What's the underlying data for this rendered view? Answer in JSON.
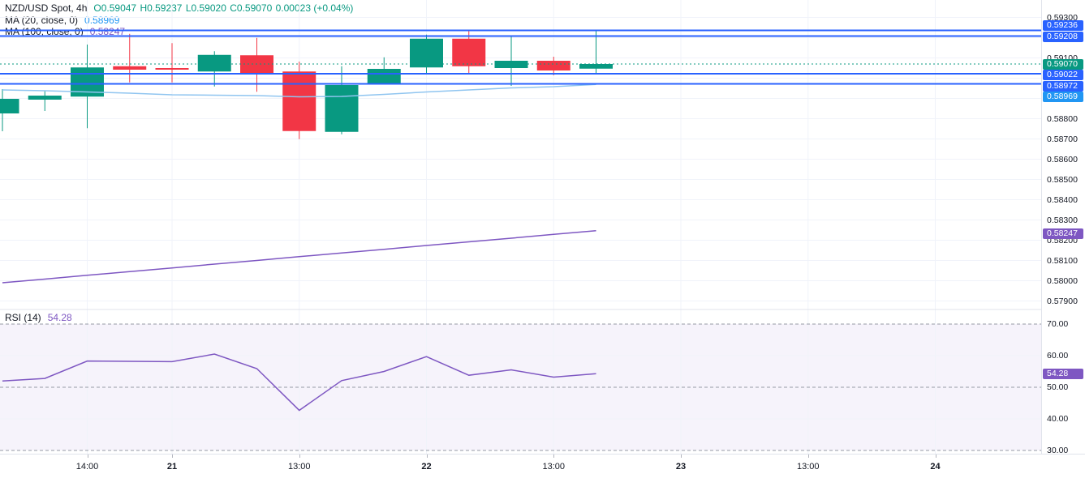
{
  "header": {
    "symbol_title": "NZD/USD Spot, 4h",
    "ohlc": {
      "open": "O0.59047",
      "high": "H0.59237",
      "low": "L0.59020",
      "close": "C0.59070",
      "change": "0.00023 (+0.04%)"
    },
    "ma20": {
      "label": "MA (20, close, 0)",
      "value": "0.58969"
    },
    "ma100": {
      "label": "MA (100, close, 0)",
      "value": "0.58247"
    }
  },
  "rsi_legend": {
    "label": "RSI (14)",
    "value": "54.28"
  },
  "price_axis": {
    "ticks": [
      "0.59300",
      "0.59100",
      "0.58800",
      "0.58700",
      "0.58600",
      "0.58500",
      "0.58400",
      "0.58300",
      "0.58200",
      "0.58100",
      "0.58000",
      "0.57900"
    ],
    "badges": [
      {
        "text": "0.59236",
        "color": "#2962FF",
        "kind": "drawn-line"
      },
      {
        "text": "0.59208",
        "color": "#2962FF",
        "kind": "drawn-line"
      },
      {
        "text": "0.59070",
        "color": "#089981",
        "kind": "last-price"
      },
      {
        "text": "0.59022",
        "color": "#2962FF",
        "kind": "drawn-line"
      },
      {
        "text": "0.58972",
        "color": "#2962FF",
        "kind": "drawn-line"
      },
      {
        "text": "0.58969",
        "color": "#2196F3",
        "kind": "ma20-value"
      },
      {
        "text": "0.58247",
        "color": "#7E57C2",
        "kind": "ma100-value"
      }
    ]
  },
  "rsi_axis": {
    "ticks": [
      "70.00",
      "60.00",
      "50.00",
      "40.00",
      "30.00"
    ],
    "badge": {
      "text": "54.28",
      "color": "#7E57C2"
    }
  },
  "time_axis": {
    "labels": [
      {
        "text": "14:00",
        "index": 2,
        "bold": false
      },
      {
        "text": "21",
        "index": 4,
        "bold": true
      },
      {
        "text": "13:00",
        "index": 7,
        "bold": false
      },
      {
        "text": "22",
        "index": 10,
        "bold": true
      },
      {
        "text": "13:00",
        "index": 13,
        "bold": false
      },
      {
        "text": "23",
        "index": 16,
        "bold": true
      },
      {
        "text": "13:00",
        "index": 19,
        "bold": false
      },
      {
        "text": "24",
        "index": 22,
        "bold": true
      }
    ]
  },
  "colors": {
    "up": "#089981",
    "down": "#F23645",
    "drawn_line": "#2962FF",
    "ma20_line": "#90C5F0",
    "ma20_label": "#2196F3",
    "ma100": "#7E57C2",
    "rsi": "#7E57C2",
    "rsi_band": "#7E57C2",
    "grid": "#F0F3FA",
    "axis_text": "#131722",
    "dashed_level": "#959BA5",
    "separator": "#E0E3EB",
    "tick": "#B2B5BE",
    "last_price": "#089981"
  },
  "chart_data": [
    {
      "type": "candlestick",
      "title": "NZD/USD Spot, 4h",
      "last_bar": {
        "open": 0.59047,
        "high": 0.59237,
        "low": 0.5902,
        "close": 0.5907,
        "change": 0.00023,
        "change_pct": "+0.04%"
      },
      "candles": [
        {
          "o": 0.58826,
          "h": 0.58946,
          "l": 0.58738,
          "c": 0.58898
        },
        {
          "o": 0.58894,
          "h": 0.58938,
          "l": 0.58838,
          "c": 0.58914
        },
        {
          "o": 0.58909,
          "h": 0.59166,
          "l": 0.58753,
          "c": 0.59053
        },
        {
          "o": 0.59059,
          "h": 0.59219,
          "l": 0.58979,
          "c": 0.59042
        },
        {
          "o": 0.5905,
          "h": 0.59173,
          "l": 0.58979,
          "c": 0.59042
        },
        {
          "o": 0.59033,
          "h": 0.59133,
          "l": 0.58959,
          "c": 0.59115
        },
        {
          "o": 0.59113,
          "h": 0.59199,
          "l": 0.58933,
          "c": 0.59026
        },
        {
          "o": 0.59033,
          "h": 0.59082,
          "l": 0.58699,
          "c": 0.58739
        },
        {
          "o": 0.58735,
          "h": 0.59059,
          "l": 0.58723,
          "c": 0.58966
        },
        {
          "o": 0.58969,
          "h": 0.59103,
          "l": 0.58969,
          "c": 0.59046
        },
        {
          "o": 0.59053,
          "h": 0.59215,
          "l": 0.59026,
          "c": 0.59195
        },
        {
          "o": 0.59195,
          "h": 0.59239,
          "l": 0.59023,
          "c": 0.59059
        },
        {
          "o": 0.5905,
          "h": 0.59206,
          "l": 0.58962,
          "c": 0.59086
        },
        {
          "o": 0.59086,
          "h": 0.59106,
          "l": 0.59014,
          "c": 0.59038
        },
        {
          "o": 0.59047,
          "h": 0.59237,
          "l": 0.5902,
          "c": 0.5907
        }
      ],
      "ma20": [
        0.58942,
        0.58938,
        0.58932,
        0.58926,
        0.58918,
        0.58916,
        0.58914,
        0.58908,
        0.5891,
        0.5892,
        0.58932,
        0.58942,
        0.58952,
        0.58958,
        0.58969
      ],
      "ma100": [
        0.5799,
        0.58008,
        0.58027,
        0.58045,
        0.58063,
        0.58082,
        0.581,
        0.58119,
        0.58137,
        0.58155,
        0.58174,
        0.58192,
        0.5821,
        0.58229,
        0.58247
      ],
      "drawn_horizontal_lines": [
        0.59236,
        0.59208,
        0.59022,
        0.58972
      ],
      "last_price": 0.5907,
      "ylabel": "price",
      "y_gridline_step": 0.001,
      "ylim": [
        0.5786,
        0.59386
      ],
      "grid": true
    },
    {
      "type": "line",
      "title": "RSI (14)",
      "values": [
        52.0,
        52.8,
        58.3,
        58.2,
        58.1,
        60.5,
        55.9,
        42.7,
        52.1,
        55.0,
        59.7,
        53.8,
        55.5,
        53.2,
        54.28
      ],
      "last_value": 54.28,
      "band": [
        30,
        70
      ],
      "dashed_levels": [
        70,
        50,
        30
      ],
      "solid_gridlines": [
        60,
        40
      ],
      "ylim": [
        25.9,
        74.6
      ]
    }
  ]
}
